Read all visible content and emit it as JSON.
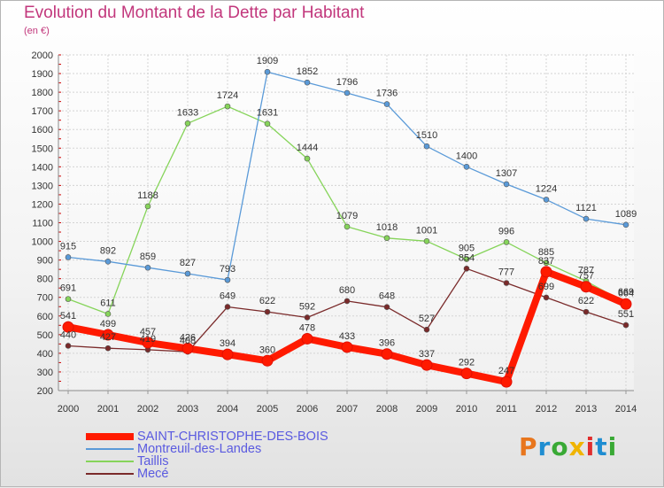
{
  "title": "Evolution du Montant de la Dette par Habitant",
  "subtitle": "(en €)",
  "logo": {
    "text": "Proxiti",
    "colors": [
      "#e8761d",
      "#1f8dd1",
      "#39a935",
      "#f0b400",
      "#e02d2d",
      "#1f8dd1",
      "#39a935"
    ]
  },
  "chart_data": {
    "type": "line",
    "title": "Evolution du Montant de la Dette par Habitant",
    "subtitle": "(en €)",
    "xlabel": "",
    "ylabel": "",
    "ylim": [
      200,
      2000
    ],
    "yticks": [
      200,
      300,
      400,
      500,
      600,
      700,
      800,
      900,
      1000,
      1100,
      1200,
      1300,
      1400,
      1500,
      1600,
      1700,
      1800,
      1900,
      2000
    ],
    "grid": true,
    "legend_position": "bottom-left",
    "categories": [
      "2000",
      "2001",
      "2002",
      "2003",
      "2004",
      "2005",
      "2006",
      "2007",
      "2008",
      "2009",
      "2010",
      "2011",
      "2012",
      "2013",
      "2014"
    ],
    "series": [
      {
        "name": "Mecé",
        "color": "#7a2a2a",
        "width": 1.3,
        "marker": 3,
        "values": [
          440,
          427,
          419,
          408,
          649,
          622,
          592,
          680,
          648,
          527,
          854,
          777,
          699,
          622,
          551
        ]
      },
      {
        "name": "Taillis",
        "color": "#86d45a",
        "width": 1.3,
        "marker": 3,
        "values": [
          691,
          611,
          1188,
          1633,
          1724,
          1631,
          1444,
          1079,
          1018,
          1001,
          905,
          996,
          885,
          787,
          669
        ]
      },
      {
        "name": "Montreuil-des-Landes",
        "color": "#5a9ad8",
        "width": 1.3,
        "marker": 3,
        "values": [
          915,
          892,
          859,
          827,
          793,
          1909,
          1852,
          1796,
          1736,
          1510,
          1400,
          1307,
          1224,
          1121,
          1089
        ]
      },
      {
        "name": "SAINT-CHRISTOPHE-DES-BOIS",
        "color": "#ff1a00",
        "width": 8,
        "marker": 6,
        "values": [
          541,
          499,
          457,
          426,
          394,
          360,
          478,
          433,
          396,
          337,
          292,
          247,
          837,
          757,
          664
        ]
      }
    ],
    "legend": [
      {
        "name": "SAINT-CHRISTOPHE-DES-BOIS",
        "color": "#ff1a00",
        "thick": true
      },
      {
        "name": "Montreuil-des-Landes",
        "color": "#5a9ad8",
        "thick": false
      },
      {
        "name": "Taillis",
        "color": "#86d45a",
        "thick": false
      },
      {
        "name": "Mecé",
        "color": "#7a2a2a",
        "thick": false
      }
    ]
  }
}
